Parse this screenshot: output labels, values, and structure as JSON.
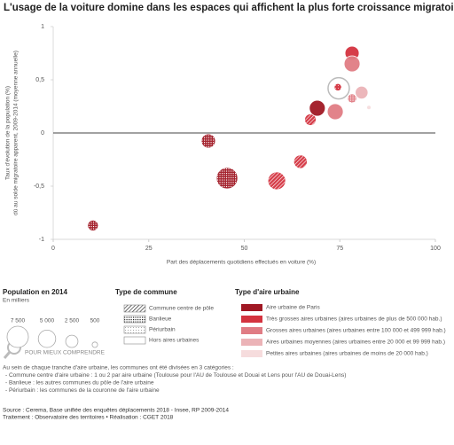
{
  "chart_data": {
    "type": "bubble",
    "title": "L'usage de la voiture domine dans les espaces qui affichent la plus forte croissance migratoire",
    "y_label": [
      "Taux d'évolution de la population (%)",
      "dû au solde migratoire apparent, 2009-2014 (moyenne annuelle)"
    ],
    "x_label": "Part des déplacements quotidiens effectués en voiture (%)",
    "xlim": [
      0,
      100
    ],
    "xticks": [
      0,
      25,
      50,
      75,
      100
    ],
    "ylim": [
      -1,
      1
    ],
    "yticks": [
      {
        "value": -1,
        "label": "-1"
      },
      {
        "value": -0.5,
        "label": "-0,5"
      },
      0,
      {
        "value": 0.5,
        "label": "0,5"
      },
      1
    ],
    "x": [
      10.4,
      40.6,
      45.5,
      58.5,
      64.7,
      67.3,
      69.1,
      73.8,
      74.7,
      74.5,
      78.2,
      78.2,
      78.2,
      80.7,
      82.6
    ],
    "y": [
      -0.87,
      -0.075,
      -0.425,
      -0.45,
      -0.27,
      0.125,
      0.233,
      0.2,
      0.42,
      0.43,
      0.325,
      0.75,
      0.65,
      0.38,
      0.24
    ],
    "sizes": [
      1900,
      3300,
      7500,
      5200,
      3000,
      2200,
      4200,
      4200,
      7500,
      900,
      1400,
      3300,
      4200,
      2700,
      300
    ],
    "colors": [
      "#a01824",
      "#a01824",
      "#a01824",
      "#d4333f",
      "#d4333f",
      "#d4333f",
      "#a01824",
      "#e07c84",
      "#ffffff",
      "#d4333f",
      "#e07c84",
      "#d4333f",
      "#e07c84",
      "#ebb3b7",
      "#f6dcdd"
    ],
    "patterns": [
      "dots",
      "dots",
      "dots",
      "stripes",
      "stripes",
      "stripes",
      "none",
      "none",
      "none",
      "light-dots",
      "dots",
      "none",
      "none",
      "none",
      "none"
    ],
    "size_legend": {
      "title": "Population en 2014",
      "subtitle": "En milliers",
      "values": [
        {
          "value": 7500,
          "label": "7 500"
        },
        {
          "value": 5000,
          "label": "5 000"
        },
        {
          "value": 2500,
          "label": "2 500"
        },
        500
      ]
    },
    "commune_legend": {
      "title": "Type de commune",
      "items": [
        {
          "label": "Commune centre de pôle",
          "pattern": "stripes"
        },
        {
          "label": "Banlieue",
          "pattern": "dots"
        },
        {
          "label": "Périurbain",
          "pattern": "light-dots"
        },
        {
          "label": "Hors aires urbaines",
          "pattern": "none"
        }
      ]
    },
    "aire_legend": {
      "title": "Type d'aire urbaine",
      "items": [
        {
          "label": "Aire urbaine de Paris",
          "color": "#a01824"
        },
        {
          "label": "Très grosses aires urbaines (aires urbaines de plus de 500 000 hab.)",
          "color": "#d4333f"
        },
        {
          "label": "Grosses aires urbaines (aires urbaines entre 100 000 et 499 999 hab.)",
          "color": "#e07c84"
        },
        {
          "label": "Aires urbaines moyennes (aires urbaines entre 20 000 et 99 999 hab.)",
          "color": "#ebb3b7"
        },
        {
          "label": "Petites aires urbaines (aires urbaines de moins de 20 000 hab.)",
          "color": "#f6dcdd"
        }
      ]
    },
    "note_title": "POUR MIEUX COMPRENDRE",
    "note_lines": [
      "Au sein de chaque tranche d'aire urbaine, les communes ont été divisées en 3 catégories :",
      "- Commune centre d'aire urbaine : 1 ou 2 par aire urbaine (Toulouse pour l'AU de Toulouse et Douai et Lens pour l'AU de Douai-Lens)",
      "- Banlieue : les autres communes du pôle de l'aire urbaine",
      "- Périurbain : les communes de la couronne de l'aire urbaine"
    ],
    "source": [
      "Source : Cerema, Base unifiée des enquêtes déplacements 2018 - Insee, RP 2009-2014",
      "Traitement : Observatoire des territoires • Réalisation : CGET 2018"
    ]
  }
}
